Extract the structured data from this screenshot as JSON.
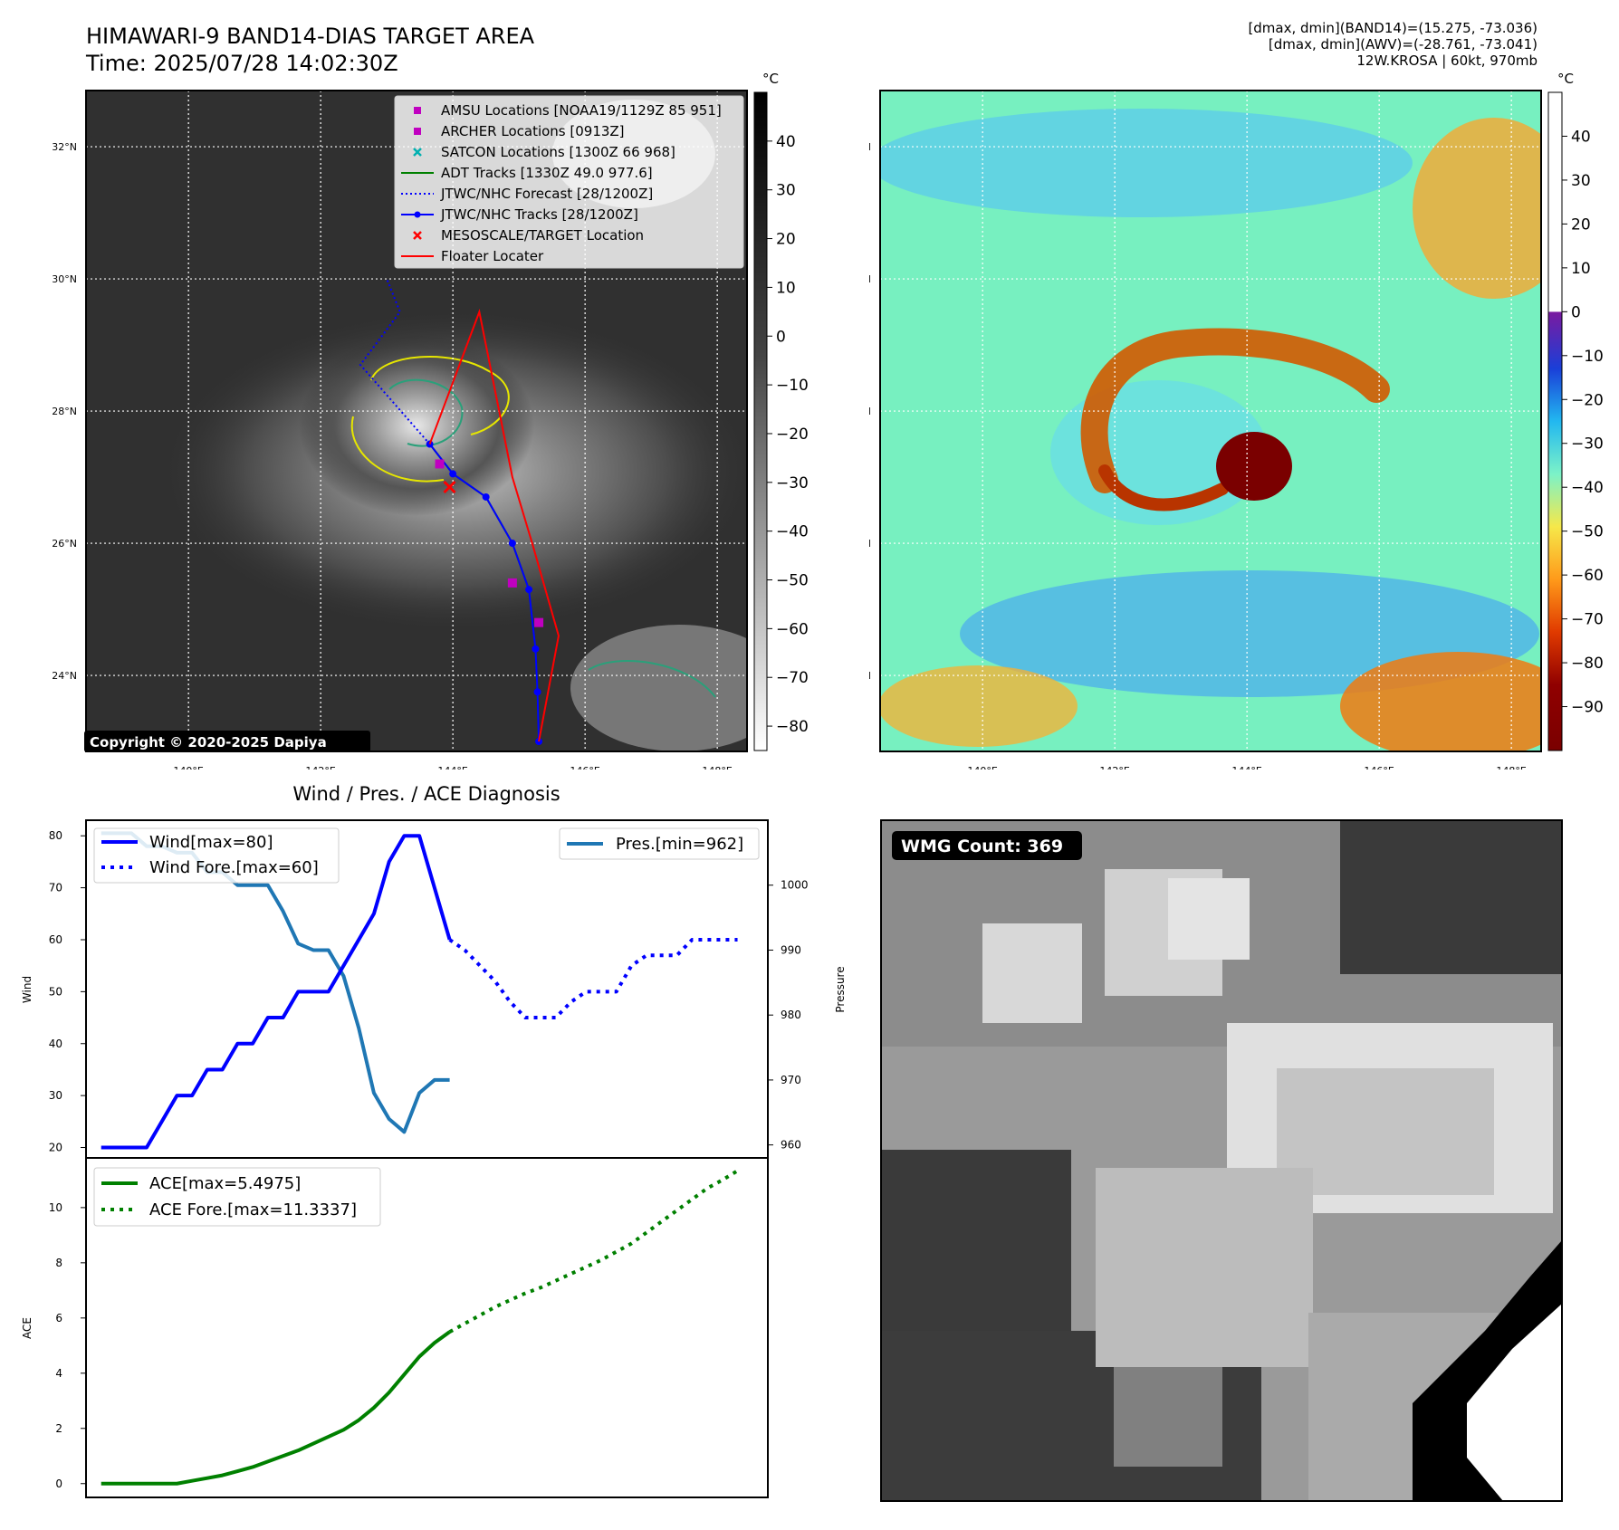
{
  "header": {
    "title": "HIMAWARI-9 BAND14-DIAS TARGET AREA",
    "time": "Time: 2025/07/28 14:02:30Z",
    "info_lines": [
      "[dmax, dmin](BAND14)=(15.275, -73.036)",
      "[dmax, dmin](AWV)=(-28.761, -73.041)",
      "12W.KROSA | 60kt, 970mb"
    ]
  },
  "maps": {
    "lon_labels": [
      "140°E",
      "142°E",
      "144°E",
      "146°E",
      "148°E"
    ],
    "lat_labels": [
      "32°N",
      "30°N",
      "28°N",
      "26°N",
      "24°N"
    ],
    "lon_ticks": [
      140,
      142,
      144,
      146,
      148
    ],
    "lat_ticks": [
      32,
      30,
      28,
      26,
      24
    ],
    "lon_range": [
      138.45,
      148.45
    ],
    "lat_range": [
      22.85,
      32.85
    ],
    "copyright": "Copyright © 2020-2025 Dapiya",
    "legend": [
      {
        "label": "AMSU Locations [NOAA19/1129Z 85 951]",
        "marker": "square",
        "color": "#c000c0"
      },
      {
        "label": "ARCHER Locations [0913Z]",
        "marker": "square",
        "color": "#c000c0"
      },
      {
        "label": "SATCON Locations [1300Z 66 968]",
        "marker": "x",
        "color": "#00b0b0"
      },
      {
        "label": "ADT Tracks [1330Z 49.0 977.6]",
        "marker": "line",
        "color": "#008000"
      },
      {
        "label": "JTWC/NHC Forecast [28/1200Z]",
        "marker": "dotted",
        "color": "#0000ff"
      },
      {
        "label": "JTWC/NHC Tracks [28/1200Z]",
        "marker": "line-dot",
        "color": "#0000ff"
      },
      {
        "label": "MESOSCALE/TARGET Location",
        "marker": "x",
        "color": "#ff0000"
      },
      {
        "label": "Floater Locater",
        "marker": "line",
        "color": "#ff0000"
      }
    ],
    "ir_colorbar": {
      "unit": "°C",
      "ticks": [
        40,
        30,
        20,
        10,
        0,
        -10,
        -20,
        -30,
        -40,
        -50,
        -60,
        -70,
        -80
      ],
      "labels": [
        "40",
        "30",
        "20",
        "10",
        "0",
        "−10",
        "−20",
        "−30",
        "−40",
        "−50",
        "−60",
        "−70",
        "−80"
      ],
      "range": [
        -85,
        50
      ]
    },
    "awv_colorbar": {
      "unit": "°C",
      "ticks": [
        40,
        30,
        20,
        10,
        0,
        -10,
        -20,
        -30,
        -40,
        -50,
        -60,
        -70,
        -80,
        -90
      ],
      "labels": [
        "40",
        "30",
        "20",
        "10",
        "0",
        "−10",
        "−20",
        "−30",
        "−40",
        "−50",
        "−60",
        "−70",
        "−80",
        "−90"
      ],
      "range": [
        -100,
        50
      ]
    },
    "storm_center": [
      143.95,
      26.85
    ],
    "best_track": [
      [
        143.65,
        27.5
      ],
      [
        144.0,
        27.05
      ],
      [
        144.5,
        26.7
      ],
      [
        144.9,
        26.0
      ],
      [
        145.15,
        25.3
      ],
      [
        145.25,
        24.4
      ],
      [
        145.28,
        23.75
      ],
      [
        145.3,
        23.0
      ]
    ],
    "forecast_track": [
      [
        143.65,
        27.5
      ],
      [
        142.6,
        28.7
      ],
      [
        143.2,
        29.5
      ],
      [
        143.0,
        30.0
      ]
    ]
  },
  "wmg": {
    "label": "WMG Count: 369"
  },
  "chart_data": [
    {
      "type": "line",
      "title": "Wind / Pres. / ACE Diagnosis",
      "ylabel": "Wind",
      "y2label": "Pressure",
      "ylim": [
        18,
        83
      ],
      "y2lim": [
        958,
        1010
      ],
      "yticks": [
        20,
        30,
        40,
        50,
        60,
        70,
        80
      ],
      "y2ticks": [
        960,
        970,
        980,
        990,
        1000
      ],
      "series": [
        {
          "name": "Wind[max=80]",
          "style": "solid",
          "color": "#0000ff",
          "x": [
            0,
            1,
            2,
            3,
            4,
            5,
            6,
            7,
            8,
            9,
            10,
            11,
            12,
            13,
            14,
            15,
            16,
            17,
            18,
            19,
            20,
            21,
            22,
            23
          ],
          "y": [
            20,
            20,
            20,
            20,
            25,
            30,
            30,
            35,
            35,
            40,
            40,
            45,
            45,
            50,
            50,
            50,
            55,
            60,
            65,
            75,
            80,
            80,
            70,
            60
          ]
        },
        {
          "name": "Wind Fore.[max=60]",
          "style": "dotted",
          "color": "#0000ff",
          "x": [
            23,
            24,
            25,
            26,
            27,
            28,
            29,
            30,
            31,
            32,
            33,
            34,
            35,
            36,
            37,
            38,
            39,
            40,
            41,
            42
          ],
          "y": [
            60,
            58,
            55,
            52,
            48,
            45,
            45,
            45,
            48,
            50,
            50,
            50,
            55,
            57,
            57,
            57,
            60,
            60,
            60,
            60
          ]
        },
        {
          "name": "Pres.[min=962]",
          "style": "solid",
          "color": "#1f77b4",
          "axis": "right",
          "x": [
            0,
            1,
            2,
            3,
            4,
            5,
            6,
            7,
            8,
            9,
            10,
            11,
            12,
            13,
            14,
            15,
            16,
            17,
            18,
            19,
            20,
            21,
            22,
            23
          ],
          "y": [
            1008,
            1008,
            1008,
            1006,
            1006,
            1005,
            1005,
            1002,
            1002,
            1000,
            1000,
            1000,
            996,
            991,
            990,
            990,
            986,
            978,
            968,
            964,
            962,
            968,
            970,
            970
          ]
        }
      ]
    },
    {
      "type": "line",
      "ylabel": "ACE",
      "ylim": [
        -0.5,
        11.8
      ],
      "yticks": [
        0,
        2,
        4,
        6,
        8,
        10
      ],
      "series": [
        {
          "name": "ACE[max=5.4975]",
          "style": "solid",
          "color": "#008000",
          "x": [
            0,
            1,
            2,
            3,
            4,
            5,
            6,
            7,
            8,
            9,
            10,
            11,
            12,
            13,
            14,
            15,
            16,
            17,
            18,
            19,
            20,
            21,
            22,
            23
          ],
          "y": [
            0,
            0,
            0,
            0,
            0,
            0,
            0.1,
            0.2,
            0.3,
            0.45,
            0.6,
            0.8,
            1.0,
            1.2,
            1.45,
            1.7,
            1.95,
            2.3,
            2.75,
            3.3,
            3.95,
            4.6,
            5.1,
            5.4975
          ]
        },
        {
          "name": "ACE Fore.[max=11.3337]",
          "style": "dotted",
          "color": "#008000",
          "x": [
            23,
            24,
            25,
            26,
            27,
            28,
            29,
            30,
            31,
            32,
            33,
            34,
            35,
            36,
            37,
            38,
            39,
            40,
            41,
            42
          ],
          "y": [
            5.4975,
            5.8,
            6.1,
            6.4,
            6.65,
            6.9,
            7.1,
            7.35,
            7.6,
            7.85,
            8.1,
            8.4,
            8.7,
            9.1,
            9.5,
            9.9,
            10.3,
            10.7,
            11.0,
            11.3337
          ]
        }
      ]
    }
  ]
}
